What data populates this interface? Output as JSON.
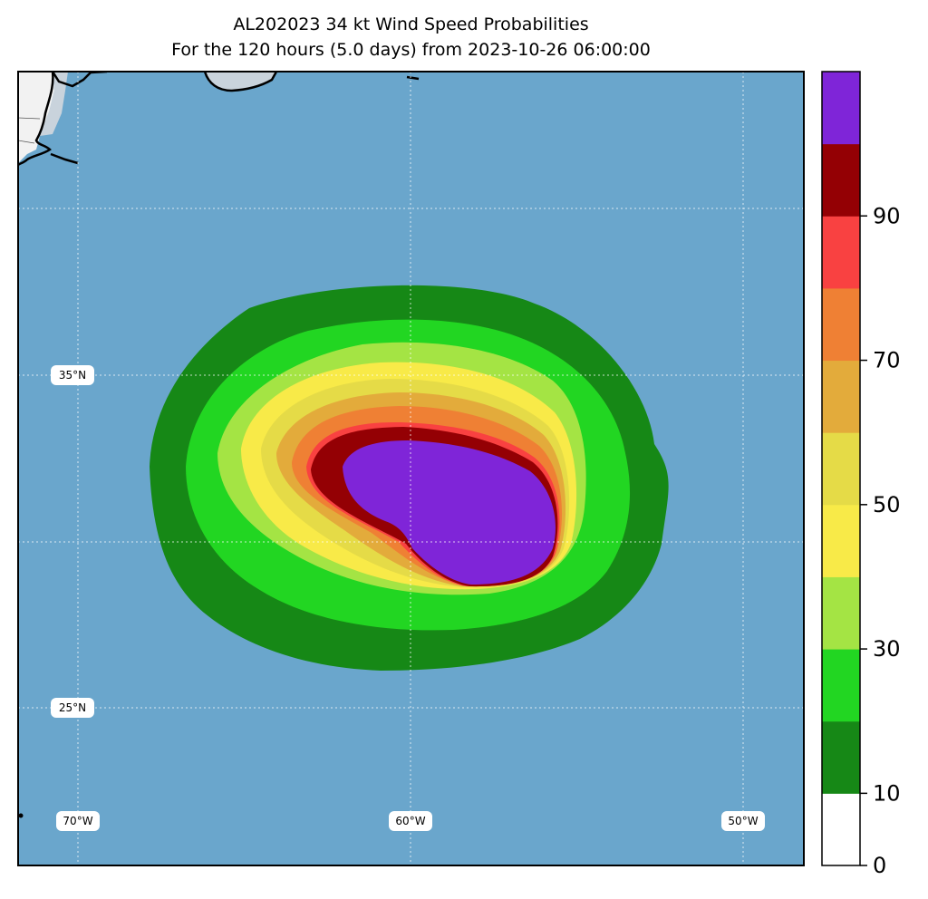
{
  "title": {
    "line1": "AL202023 34 kt Wind Speed Probabilities",
    "line2": "For the 120 hours (5.0 days) from 2023-10-26 06:00:00"
  },
  "map": {
    "ocean_color": "#6aa6cc",
    "land_color": "#f2f2f2",
    "lat_labels": [
      "35°N",
      "25°N"
    ],
    "lon_labels": [
      "70°W",
      "60°W",
      "50°W"
    ]
  },
  "colorbar": {
    "ticks": [
      "0",
      "10",
      "30",
      "50",
      "70",
      "90"
    ],
    "bins": [
      {
        "range": "0-10",
        "color": "#ffffff"
      },
      {
        "range": "10-20",
        "color": "#168816"
      },
      {
        "range": "20-30",
        "color": "#22d622"
      },
      {
        "range": "30-40",
        "color": "#a4e444"
      },
      {
        "range": "40-50",
        "color": "#f8ea48"
      },
      {
        "range": "50-60",
        "color": "#e5db47"
      },
      {
        "range": "60-70",
        "color": "#e3ab3b"
      },
      {
        "range": "70-80",
        "color": "#ef8034"
      },
      {
        "range": "80-90",
        "color": "#f94141"
      },
      {
        "range": "90-95",
        "color": "#940004"
      },
      {
        "range": "95-100",
        "color": "#7f25d8"
      }
    ]
  },
  "contours": [
    {
      "level": "10",
      "color": "#168816"
    },
    {
      "level": "20",
      "color": "#22d622"
    },
    {
      "level": "30",
      "color": "#a4e444"
    },
    {
      "level": "40",
      "color": "#f8ea48"
    },
    {
      "level": "50",
      "color": "#e5db47"
    },
    {
      "level": "60",
      "color": "#e3ab3b"
    },
    {
      "level": "70",
      "color": "#ef8034"
    },
    {
      "level": "80",
      "color": "#f94141"
    },
    {
      "level": "90",
      "color": "#940004"
    },
    {
      "level": "95",
      "color": "#7f25d8"
    }
  ]
}
